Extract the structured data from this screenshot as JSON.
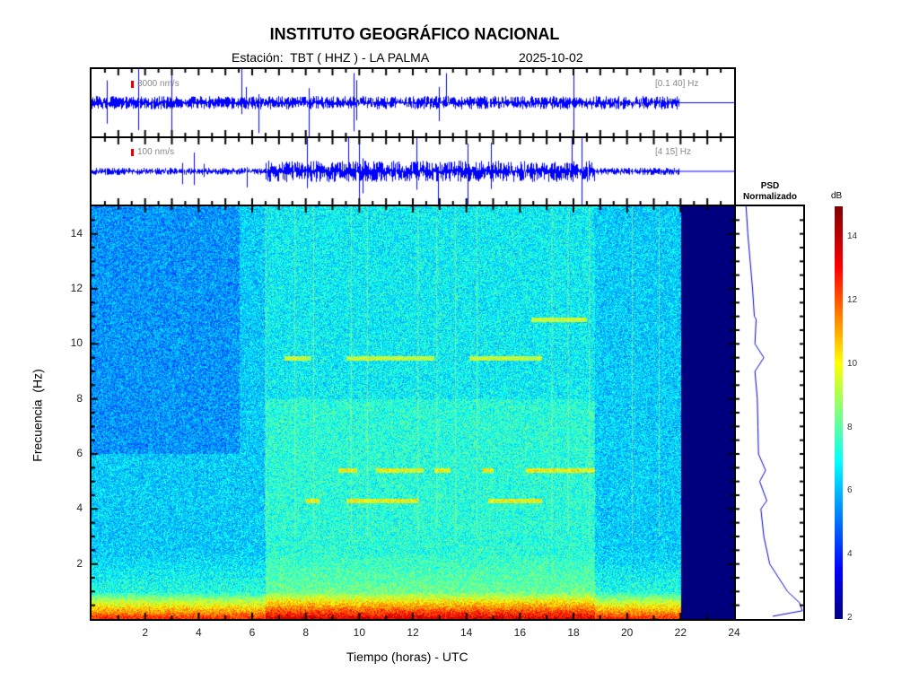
{
  "header": {
    "title": "INSTITUTO GEOGRÁFICO NACIONAL",
    "station": "Estación:  TBT ( HHZ ) - LA PALMA",
    "date": "2025-10-02"
  },
  "traces": [
    {
      "scale": "3000 nm/s",
      "band": "[0.1 40] Hz",
      "activity_window_hours": [
        0,
        22
      ]
    },
    {
      "scale": "100 nm/s",
      "band": "[4 15] Hz",
      "activity_window_hours": [
        6.5,
        18.8
      ]
    }
  ],
  "psd": {
    "title_line1": "PSD",
    "title_line2": "Normalizado"
  },
  "colors": {
    "trace": "#0000ff",
    "scale_bar": "#e00000",
    "nodata": "#00007f"
  },
  "chart_data": {
    "type": "heatmap",
    "xlabel": "Tiempo (horas) - UTC",
    "ylabel": "Frecuencia  (Hz)",
    "xlim": [
      0,
      24
    ],
    "ylim": [
      0,
      15
    ],
    "xticks": [
      2,
      4,
      6,
      8,
      10,
      12,
      14,
      16,
      18,
      20,
      22,
      24
    ],
    "yticks": [
      2,
      4,
      6,
      8,
      10,
      12,
      14
    ],
    "data_end_hour": 22,
    "colorbar": {
      "label": "dB",
      "range": [
        2,
        15
      ],
      "ticks": [
        2,
        4,
        6,
        8,
        10,
        12,
        14
      ],
      "colormap": "jet"
    },
    "features": [
      {
        "freq": 9.5,
        "hours": [
          [
            7.2,
            8.2
          ],
          [
            9.5,
            12.8
          ],
          [
            14.1,
            16.8
          ]
        ]
      },
      {
        "freq": 5.4,
        "hours": [
          [
            9.2,
            9.9
          ],
          [
            10.6,
            12.4
          ],
          [
            12.8,
            13.4
          ],
          [
            14.6,
            15
          ],
          [
            16.2,
            18.8
          ]
        ]
      },
      {
        "freq": 4.3,
        "hours": [
          [
            8,
            8.5
          ],
          [
            9.5,
            12.2
          ],
          [
            14.8,
            16.8
          ]
        ]
      },
      {
        "freq": 10.9,
        "hours": [
          [
            16.4,
            18.5
          ]
        ]
      }
    ],
    "psd_profile": {
      "freq": [
        0.1,
        0.3,
        0.6,
        1,
        2,
        3,
        4,
        4.3,
        5,
        5.4,
        6,
        7,
        8,
        9,
        9.5,
        10,
        10.9,
        11,
        12,
        13,
        14,
        15
      ],
      "value": [
        0.5,
        1,
        0.95,
        0.75,
        0.45,
        0.35,
        0.3,
        0.4,
        0.28,
        0.38,
        0.26,
        0.25,
        0.24,
        0.2,
        0.35,
        0.2,
        0.22,
        0.19,
        0.16,
        0.12,
        0.08,
        0.05
      ]
    }
  }
}
